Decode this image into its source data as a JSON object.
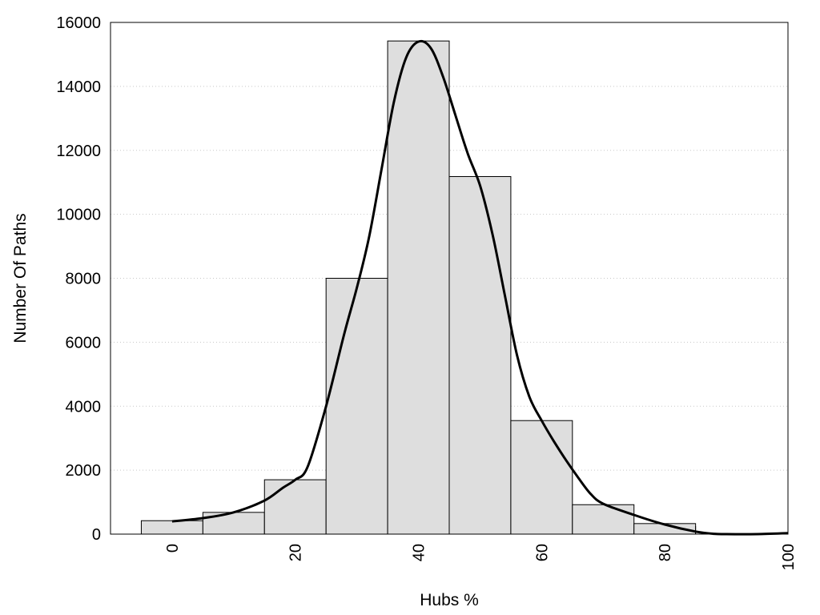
{
  "chart_data": {
    "type": "bar",
    "title": "",
    "xlabel": "Hubs %",
    "ylabel": "Number Of Paths",
    "xlim": [
      -10,
      100
    ],
    "ylim": [
      0,
      16000
    ],
    "grid": true,
    "bin_width": 10,
    "bins": [
      {
        "x": 0,
        "value": 420
      },
      {
        "x": 10,
        "value": 680
      },
      {
        "x": 20,
        "value": 1700
      },
      {
        "x": 30,
        "value": 8000
      },
      {
        "x": 40,
        "value": 15420
      },
      {
        "x": 50,
        "value": 11180
      },
      {
        "x": 60,
        "value": 3550
      },
      {
        "x": 70,
        "value": 920
      },
      {
        "x": 80,
        "value": 330
      },
      {
        "x": 90,
        "value": 0
      }
    ],
    "curve": {
      "x": [
        0,
        5,
        10,
        15,
        18,
        20,
        22,
        25,
        28,
        30,
        32,
        34,
        36,
        38,
        40,
        42,
        44,
        46,
        48,
        50,
        52,
        54,
        56,
        58,
        60,
        62,
        64,
        66,
        68,
        70,
        75,
        80,
        85,
        88,
        90,
        95,
        100
      ],
      "y": [
        400,
        500,
        680,
        1050,
        1450,
        1700,
        2100,
        4000,
        6300,
        7700,
        9300,
        11400,
        13500,
        14900,
        15400,
        15200,
        14300,
        13100,
        11900,
        10900,
        9400,
        7500,
        5600,
        4300,
        3550,
        2900,
        2300,
        1750,
        1250,
        950,
        600,
        300,
        80,
        10,
        0,
        0,
        30
      ]
    },
    "x_ticks": [
      "0",
      "20",
      "40",
      "60",
      "80",
      "100"
    ],
    "x_tick_values": [
      0,
      20,
      40,
      60,
      80,
      100
    ],
    "y_ticks": [
      "0",
      "2000",
      "4000",
      "6000",
      "8000",
      "10000",
      "12000",
      "14000",
      "16000"
    ],
    "y_tick_values": [
      0,
      2000,
      4000,
      6000,
      8000,
      10000,
      12000,
      14000,
      16000
    ],
    "colors": {
      "bar_fill": "#dedede",
      "bar_stroke": "#000000",
      "curve": "#000000",
      "grid": "#c8c8c8"
    }
  }
}
